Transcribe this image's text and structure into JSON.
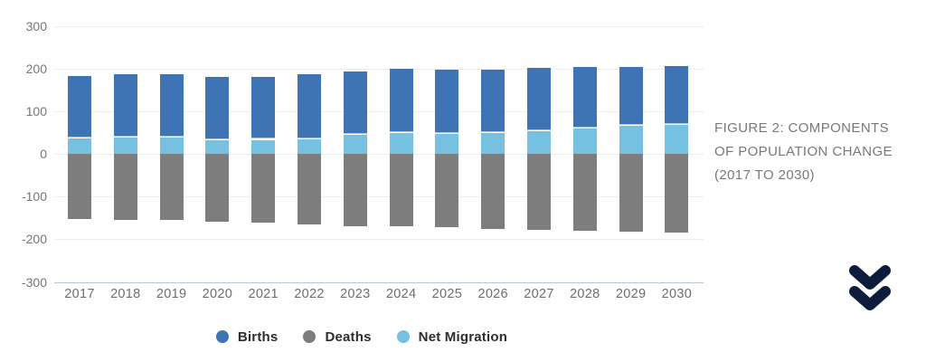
{
  "caption": {
    "lines": [
      "FIGURE 2: COMPONENTS",
      "OF POPULATION CHANGE",
      "(2017 TO 2030)"
    ]
  },
  "legend": {
    "items": [
      {
        "label": "Births",
        "color": "#3e74b3"
      },
      {
        "label": "Deaths",
        "color": "#7d7d7d"
      },
      {
        "label": "Net Migration",
        "color": "#76c0e2"
      }
    ]
  },
  "icons": {
    "double_chevron_down": {
      "name": "double-chevron-down",
      "color": "#0d1c3d"
    }
  },
  "colors": {
    "births": "#3e74b3",
    "deaths": "#7d7d7d",
    "net_migration": "#76c0e2",
    "gridline": "#ededed",
    "baseline": "#b9c6da",
    "axis_text": "#75767a",
    "caption_text": "#77787b"
  },
  "chart_data": {
    "type": "bar",
    "stacked": true,
    "title": "FIGURE 2: COMPONENTS OF POPULATION CHANGE (2017 TO 2030)",
    "xlabel": "",
    "ylabel": "",
    "categories": [
      "2017",
      "2018",
      "2019",
      "2020",
      "2021",
      "2022",
      "2023",
      "2024",
      "2025",
      "2026",
      "2027",
      "2028",
      "2029",
      "2030"
    ],
    "series": [
      {
        "name": "Births",
        "color": "#3e74b3",
        "values": [
          145,
          147,
          146,
          147,
          146,
          150,
          146,
          150,
          149,
          148,
          146,
          142,
          137,
          136
        ]
      },
      {
        "name": "Deaths",
        "color": "#7d7d7d",
        "values": [
          -152,
          -155,
          -155,
          -159,
          -161,
          -165,
          -169,
          -170,
          -172,
          -175,
          -178,
          -180,
          -182,
          -185
        ]
      },
      {
        "name": "Net Migration",
        "color": "#76c0e2",
        "values": [
          38,
          40,
          41,
          34,
          35,
          37,
          47,
          50,
          48,
          50,
          55,
          61,
          67,
          70
        ]
      }
    ],
    "ylim": [
      -300,
      300
    ],
    "yticks": [
      300,
      200,
      100,
      0,
      -100,
      -200,
      -300
    ],
    "grid": true,
    "legend_position": "bottom"
  }
}
